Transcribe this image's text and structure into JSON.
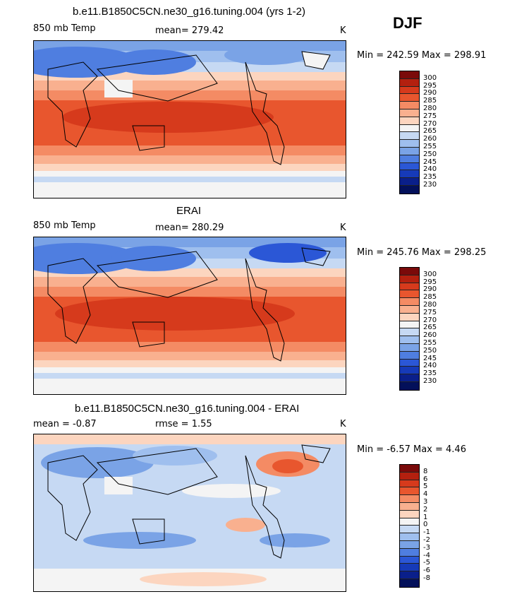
{
  "season": "DJF",
  "panels": [
    {
      "title": "b.e11.B1850C5CN.ne30_g16.tuning.004 (yrs 1-2)",
      "variable": "850 mb Temp",
      "stat": "mean= 279.42",
      "units": "K",
      "minmax": "Min = 242.59 Max = 298.91",
      "scale_colors": [
        "#7a0a0a",
        "#b3200f",
        "#d63a1c",
        "#e8562e",
        "#f48b64",
        "#f9b08f",
        "#fcd5bf",
        "#f4f4f4",
        "#c6d9f3",
        "#9fbfee",
        "#7aa3e6",
        "#4f7ee0",
        "#2b57d6",
        "#163ab8",
        "#0a1f8a",
        "#03105a"
      ],
      "scale_labels": [
        "300",
        "295",
        "290",
        "285",
        "280",
        "275",
        "270",
        "265",
        "260",
        "255",
        "250",
        "245",
        "240",
        "235",
        "230"
      ]
    },
    {
      "title": "ERAI",
      "variable": "850 mb Temp",
      "stat": "mean= 280.29",
      "units": "K",
      "minmax": "Min = 245.76 Max = 298.25",
      "scale_colors": [
        "#7a0a0a",
        "#b3200f",
        "#d63a1c",
        "#e8562e",
        "#f48b64",
        "#f9b08f",
        "#fcd5bf",
        "#f4f4f4",
        "#c6d9f3",
        "#9fbfee",
        "#7aa3e6",
        "#4f7ee0",
        "#2b57d6",
        "#163ab8",
        "#0a1f8a",
        "#03105a"
      ],
      "scale_labels": [
        "300",
        "295",
        "290",
        "285",
        "280",
        "275",
        "270",
        "265",
        "260",
        "255",
        "250",
        "245",
        "240",
        "235",
        "230"
      ]
    },
    {
      "title": "b.e11.B1850C5CN.ne30_g16.tuning.004 - ERAI",
      "stat_left": "mean =   -0.87",
      "stat_right": "rmse =    1.55",
      "units": "K",
      "minmax": "Min =  -6.57 Max =   4.46",
      "scale_colors": [
        "#7a0a0a",
        "#b3200f",
        "#d63a1c",
        "#e8562e",
        "#f48b64",
        "#f9b08f",
        "#fcd5bf",
        "#f4f4f4",
        "#c6d9f3",
        "#9fbfee",
        "#7aa3e6",
        "#4f7ee0",
        "#2b57d6",
        "#163ab8",
        "#0a1f8a",
        "#03105a"
      ],
      "scale_labels": [
        "8",
        "6",
        "5",
        "4",
        "3",
        "2",
        "1",
        "0",
        "-1",
        "-2",
        "-3",
        "-4",
        "-5",
        "-6",
        "-8"
      ]
    }
  ]
}
